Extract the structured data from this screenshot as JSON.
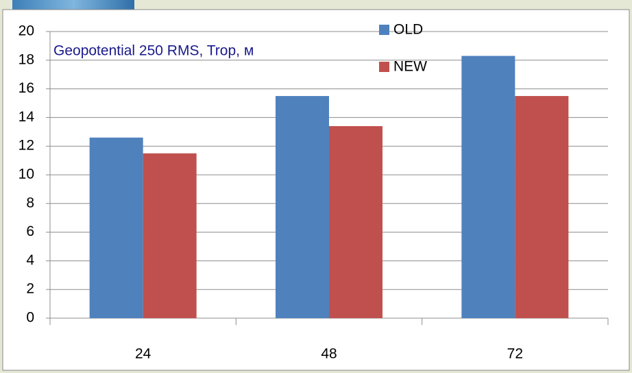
{
  "chart_data": {
    "type": "bar",
    "title": "Geopotential 250 RMS, Trop, м",
    "categories": [
      "24",
      "48",
      "72"
    ],
    "series": [
      {
        "name": "OLD",
        "color": "#4f81bd",
        "values": [
          12.6,
          15.5,
          18.3
        ]
      },
      {
        "name": "NEW",
        "color": "#c0504d",
        "values": [
          11.5,
          13.4,
          15.5
        ]
      }
    ],
    "ylim": [
      0,
      20
    ],
    "yticks": [
      0,
      2,
      4,
      6,
      8,
      10,
      12,
      14,
      16,
      18,
      20
    ],
    "grid": true
  }
}
